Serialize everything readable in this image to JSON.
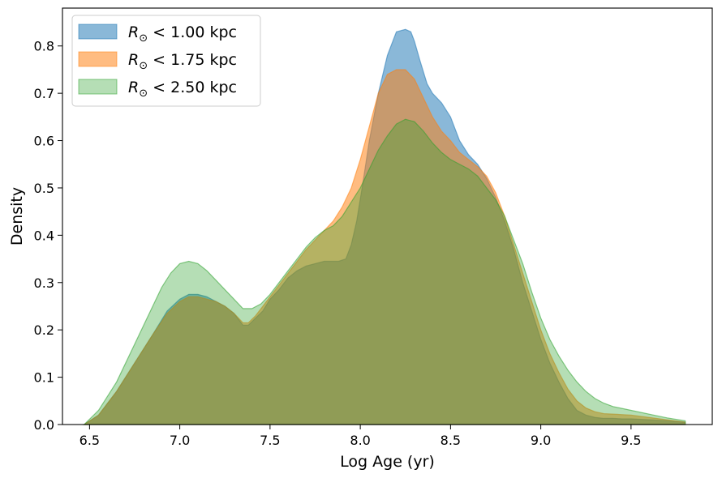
{
  "chart_data": {
    "type": "area",
    "title": "",
    "xlabel": "Log Age (yr)",
    "ylabel": "Density",
    "xlim": [
      6.35,
      9.95
    ],
    "ylim": [
      0.0,
      0.88
    ],
    "xticks": [
      6.5,
      7.0,
      7.5,
      8.0,
      8.5,
      9.0,
      9.5
    ],
    "xtick_labels": [
      "6.5",
      "7.0",
      "7.5",
      "8.0",
      "8.5",
      "9.0",
      "9.5"
    ],
    "yticks": [
      0.0,
      0.1,
      0.2,
      0.3,
      0.4,
      0.5,
      0.6,
      0.7,
      0.8
    ],
    "ytick_labels": [
      "0.0",
      "0.1",
      "0.2",
      "0.3",
      "0.4",
      "0.5",
      "0.6",
      "0.7",
      "0.8"
    ],
    "grid": false,
    "legend_position": "top-left",
    "series": [
      {
        "name": "R⊙ < 1.00 kpc",
        "name_parts": {
          "symbol": "R",
          "subscript": "⊙",
          "rest": " < 1.00 kpc"
        },
        "color": "#1f77b4",
        "opacity": 0.52,
        "x": [
          6.47,
          6.55,
          6.65,
          6.75,
          6.85,
          6.93,
          7.0,
          7.05,
          7.1,
          7.15,
          7.2,
          7.25,
          7.3,
          7.35,
          7.38,
          7.42,
          7.46,
          7.5,
          7.55,
          7.6,
          7.65,
          7.7,
          7.75,
          7.8,
          7.85,
          7.88,
          7.92,
          7.95,
          7.98,
          8.01,
          8.05,
          8.1,
          8.15,
          8.2,
          8.25,
          8.28,
          8.3,
          8.33,
          8.37,
          8.4,
          8.45,
          8.5,
          8.55,
          8.6,
          8.65,
          8.7,
          8.75,
          8.8,
          8.85,
          8.9,
          8.95,
          9.0,
          9.05,
          9.1,
          9.15,
          9.2,
          9.25,
          9.3,
          9.35,
          9.4,
          9.45,
          9.5,
          9.6,
          9.7,
          9.8
        ],
        "y": [
          0.0,
          0.02,
          0.07,
          0.13,
          0.19,
          0.24,
          0.265,
          0.275,
          0.275,
          0.27,
          0.26,
          0.25,
          0.235,
          0.21,
          0.21,
          0.225,
          0.24,
          0.265,
          0.285,
          0.31,
          0.325,
          0.335,
          0.34,
          0.345,
          0.345,
          0.345,
          0.35,
          0.38,
          0.43,
          0.5,
          0.6,
          0.7,
          0.78,
          0.83,
          0.835,
          0.83,
          0.81,
          0.77,
          0.72,
          0.7,
          0.68,
          0.65,
          0.6,
          0.57,
          0.55,
          0.52,
          0.48,
          0.43,
          0.37,
          0.3,
          0.24,
          0.18,
          0.13,
          0.09,
          0.055,
          0.03,
          0.02,
          0.015,
          0.013,
          0.013,
          0.012,
          0.012,
          0.01,
          0.008,
          0.005
        ]
      },
      {
        "name": "R⊙ < 1.75 kpc",
        "name_parts": {
          "symbol": "R",
          "subscript": "⊙",
          "rest": " < 1.75 kpc"
        },
        "color": "#ff7f0e",
        "opacity": 0.52,
        "x": [
          6.47,
          6.55,
          6.65,
          6.75,
          6.85,
          6.93,
          7.0,
          7.05,
          7.1,
          7.15,
          7.2,
          7.25,
          7.3,
          7.35,
          7.38,
          7.42,
          7.46,
          7.5,
          7.55,
          7.6,
          7.65,
          7.7,
          7.75,
          7.8,
          7.85,
          7.9,
          7.95,
          8.0,
          8.05,
          8.1,
          8.15,
          8.2,
          8.25,
          8.3,
          8.35,
          8.4,
          8.45,
          8.5,
          8.55,
          8.6,
          8.65,
          8.7,
          8.75,
          8.8,
          8.85,
          8.9,
          8.95,
          9.0,
          9.05,
          9.1,
          9.15,
          9.2,
          9.25,
          9.3,
          9.35,
          9.4,
          9.5,
          9.6,
          9.7,
          9.8
        ],
        "y": [
          0.0,
          0.02,
          0.07,
          0.13,
          0.19,
          0.235,
          0.26,
          0.27,
          0.27,
          0.265,
          0.26,
          0.25,
          0.235,
          0.215,
          0.215,
          0.23,
          0.25,
          0.27,
          0.295,
          0.32,
          0.345,
          0.37,
          0.39,
          0.41,
          0.43,
          0.46,
          0.5,
          0.56,
          0.63,
          0.7,
          0.74,
          0.75,
          0.75,
          0.73,
          0.69,
          0.65,
          0.62,
          0.6,
          0.575,
          0.56,
          0.545,
          0.525,
          0.49,
          0.44,
          0.38,
          0.32,
          0.26,
          0.2,
          0.15,
          0.11,
          0.075,
          0.05,
          0.035,
          0.027,
          0.023,
          0.022,
          0.02,
          0.015,
          0.01,
          0.005
        ]
      },
      {
        "name": "R⊙ < 2.50 kpc",
        "name_parts": {
          "symbol": "R",
          "subscript": "⊙",
          "rest": " < 2.50 kpc"
        },
        "color": "#2ca02c",
        "opacity": 0.35,
        "x": [
          6.47,
          6.55,
          6.65,
          6.75,
          6.85,
          6.9,
          6.95,
          7.0,
          7.05,
          7.1,
          7.15,
          7.2,
          7.25,
          7.3,
          7.35,
          7.4,
          7.45,
          7.5,
          7.55,
          7.6,
          7.65,
          7.7,
          7.75,
          7.8,
          7.85,
          7.9,
          7.95,
          8.0,
          8.05,
          8.1,
          8.15,
          8.2,
          8.25,
          8.3,
          8.35,
          8.4,
          8.45,
          8.5,
          8.55,
          8.6,
          8.65,
          8.7,
          8.75,
          8.8,
          8.85,
          8.9,
          8.95,
          9.0,
          9.05,
          9.1,
          9.15,
          9.2,
          9.25,
          9.3,
          9.35,
          9.4,
          9.5,
          9.6,
          9.7,
          9.8
        ],
        "y": [
          0.0,
          0.03,
          0.09,
          0.17,
          0.25,
          0.29,
          0.32,
          0.34,
          0.345,
          0.34,
          0.325,
          0.305,
          0.285,
          0.265,
          0.245,
          0.245,
          0.255,
          0.275,
          0.3,
          0.325,
          0.35,
          0.375,
          0.395,
          0.41,
          0.42,
          0.44,
          0.47,
          0.5,
          0.54,
          0.58,
          0.61,
          0.635,
          0.645,
          0.64,
          0.62,
          0.595,
          0.575,
          0.56,
          0.55,
          0.54,
          0.525,
          0.5,
          0.475,
          0.44,
          0.39,
          0.34,
          0.28,
          0.225,
          0.18,
          0.145,
          0.115,
          0.09,
          0.07,
          0.055,
          0.045,
          0.038,
          0.03,
          0.022,
          0.014,
          0.008
        ]
      }
    ]
  }
}
